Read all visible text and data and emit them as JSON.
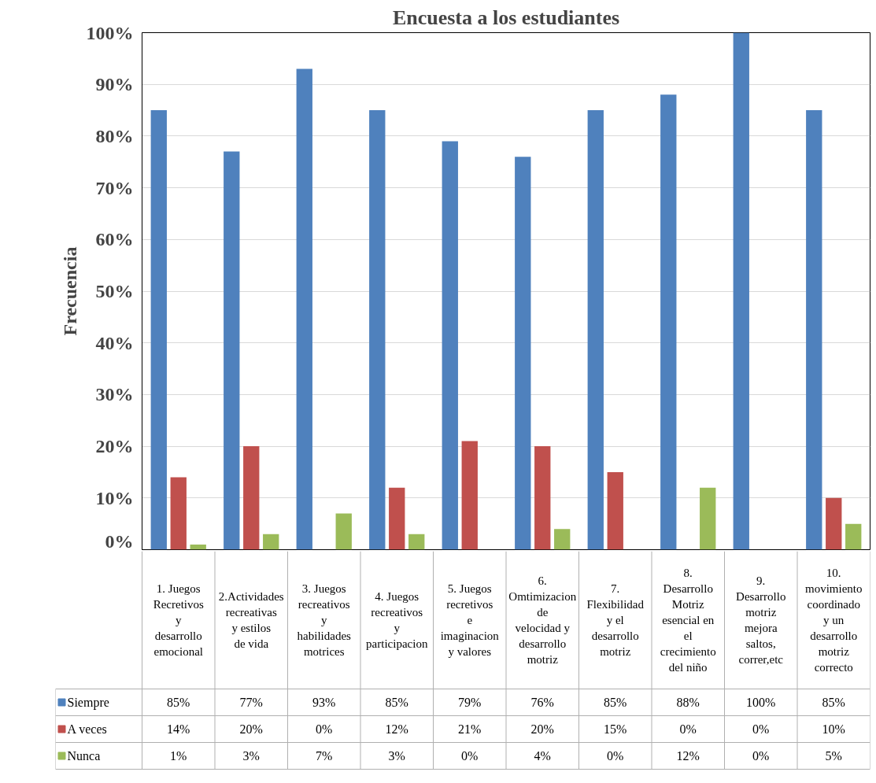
{
  "chart_data": {
    "type": "bar",
    "title": "Encuesta a los estudiantes",
    "ylabel": "Frecuencia",
    "categories": [
      "1. Juegos Recretivos y desarrollo emocional",
      "2.Actividades recreativas y estilos de vida",
      "3. Juegos recreativos y habilidades motrices",
      "4. Juegos recreativos y participacion",
      "5. Juegos recretivos e imaginacion y valores",
      "6. Omtimizacion de velocidad y desarrollo motriz",
      "7. Flexibilidad y el desarrollo motriz",
      "8. Desarrollo Motriz esencial en el crecimiento del niño",
      "9. Desarrollo motriz mejora saltos, correr,etc",
      "10. movimiento coordinado y un desarrollo motriz correcto"
    ],
    "series": [
      {
        "name": "Siempre",
        "color": "#4f81bd",
        "values": [
          85,
          77,
          93,
          85,
          79,
          76,
          85,
          88,
          100,
          85
        ],
        "value_labels": [
          "85%",
          "77%",
          "93%",
          "85%",
          "79%",
          "76%",
          "85%",
          "88%",
          "100%",
          "85%"
        ]
      },
      {
        "name": "A veces",
        "color": "#c0504d",
        "values": [
          14,
          20,
          0,
          12,
          21,
          20,
          15,
          0,
          0,
          10
        ],
        "value_labels": [
          "14%",
          "20%",
          "0%",
          "12%",
          "21%",
          "20%",
          "15%",
          "0%",
          "0%",
          "10%"
        ]
      },
      {
        "name": "Nunca",
        "color": "#9bbb59",
        "values": [
          1,
          3,
          7,
          3,
          0,
          4,
          0,
          12,
          0,
          5
        ],
        "value_labels": [
          "1%",
          "3%",
          "7%",
          "3%",
          "0%",
          "4%",
          "0%",
          "12%",
          "0%",
          "5%"
        ]
      }
    ],
    "ylim": [
      0,
      100
    ],
    "yticks": [
      {
        "value": 0,
        "label": "0%"
      },
      {
        "value": 10,
        "label": "10%"
      },
      {
        "value": 20,
        "label": "20%"
      },
      {
        "value": 30,
        "label": "30%"
      },
      {
        "value": 40,
        "label": "40%"
      },
      {
        "value": 50,
        "label": "50%"
      },
      {
        "value": 60,
        "label": "60%"
      },
      {
        "value": 70,
        "label": "70%"
      },
      {
        "value": 80,
        "label": "80%"
      },
      {
        "value": 90,
        "label": "90%"
      },
      {
        "value": 100,
        "label": "100%"
      }
    ],
    "grid": "y",
    "legend": "bottom"
  }
}
